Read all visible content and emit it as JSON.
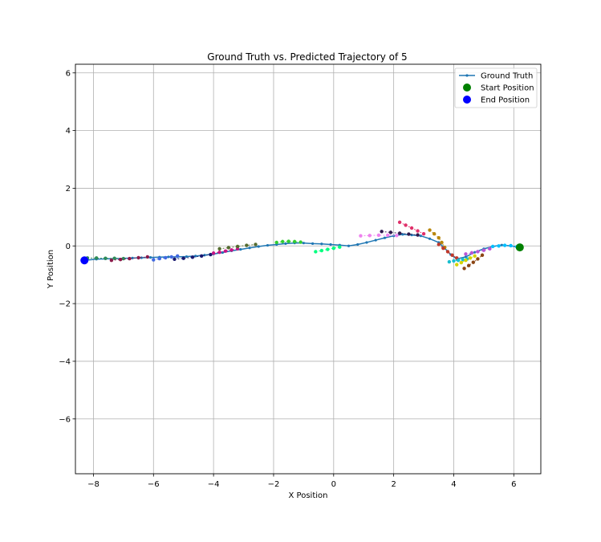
{
  "chart_data": {
    "type": "scatter",
    "title": "Ground Truth vs. Predicted Trajectory of 5",
    "xlabel": "X Position",
    "ylabel": "Y Position",
    "xlim": [
      -8.6,
      6.9
    ],
    "ylim": [
      -7.9,
      6.3
    ],
    "xticks": [
      -8,
      -6,
      -4,
      -2,
      0,
      2,
      4,
      6
    ],
    "yticks": [
      -6,
      -4,
      -2,
      0,
      2,
      4,
      6
    ],
    "xtick_labels": [
      "−8",
      "−6",
      "−4",
      "−2",
      "0",
      "2",
      "4",
      "6"
    ],
    "ytick_labels": [
      "−6",
      "−4",
      "−2",
      "0",
      "2",
      "4",
      "6"
    ],
    "grid": true,
    "legend_position": "top-right",
    "legend": [
      {
        "label": "Ground Truth",
        "kind": "line",
        "color": "#1f77b4"
      },
      {
        "label": "Start Position",
        "kind": "marker",
        "color": "#008000"
      },
      {
        "label": "End Position",
        "kind": "marker",
        "color": "#0000ff"
      }
    ],
    "ground_truth": {
      "name": "Ground Truth",
      "color": "#1f77b4",
      "x": [
        6.2,
        5.9,
        5.6,
        5.3,
        5.0,
        4.7,
        4.4,
        4.1,
        3.9,
        3.7,
        3.5,
        3.2,
        2.9,
        2.6,
        2.3,
        2.0,
        1.7,
        1.4,
        1.1,
        0.8,
        0.5,
        0.2,
        -0.1,
        -0.4,
        -0.7,
        -1.0,
        -1.3,
        -1.6,
        -1.9,
        -2.2,
        -2.5,
        -2.8,
        -3.1,
        -3.4,
        -3.7,
        -4.0,
        -4.3,
        -4.6,
        -4.9,
        -5.2,
        -5.5,
        -5.8,
        -6.1,
        -6.4,
        -6.7,
        -7.0,
        -7.3,
        -7.6,
        -7.9,
        -8.3
      ],
      "y": [
        -0.05,
        0.0,
        0.03,
        -0.02,
        -0.1,
        -0.22,
        -0.38,
        -0.45,
        -0.3,
        -0.08,
        0.12,
        0.25,
        0.35,
        0.38,
        0.4,
        0.35,
        0.28,
        0.2,
        0.12,
        0.05,
        0.0,
        0.03,
        0.05,
        0.07,
        0.08,
        0.1,
        0.1,
        0.08,
        0.05,
        0.02,
        -0.02,
        -0.07,
        -0.12,
        -0.17,
        -0.23,
        -0.28,
        -0.32,
        -0.35,
        -0.37,
        -0.38,
        -0.38,
        -0.39,
        -0.4,
        -0.41,
        -0.42,
        -0.43,
        -0.44,
        -0.45,
        -0.46,
        -0.5
      ]
    },
    "start_position": {
      "x": 6.2,
      "y": -0.05,
      "color": "#008000"
    },
    "end_position": {
      "x": -8.3,
      "y": -0.5,
      "color": "#0000ff"
    },
    "predicted_segments": [
      {
        "color": "#2e8b57",
        "x": [
          -8.2,
          -7.9,
          -7.6,
          -7.3,
          -7.0
        ],
        "y": [
          -0.42,
          -0.42,
          -0.43,
          -0.43,
          -0.44
        ]
      },
      {
        "color": "#8b1a4a",
        "x": [
          -7.4,
          -7.1,
          -6.8,
          -6.5,
          -6.2
        ],
        "y": [
          -0.5,
          -0.47,
          -0.44,
          -0.41,
          -0.38
        ]
      },
      {
        "color": "#4169e1",
        "x": [
          -6.0,
          -5.8,
          -5.6,
          -5.4,
          -5.2
        ],
        "y": [
          -0.48,
          -0.44,
          -0.41,
          -0.38,
          -0.35
        ]
      },
      {
        "color": "#191970",
        "x": [
          -5.3,
          -5.0,
          -4.7,
          -4.4,
          -4.1
        ],
        "y": [
          -0.46,
          -0.43,
          -0.39,
          -0.35,
          -0.3
        ]
      },
      {
        "color": "#c71585",
        "x": [
          -4.0,
          -3.8,
          -3.6,
          -3.4,
          -3.2
        ],
        "y": [
          -0.25,
          -0.22,
          -0.18,
          -0.14,
          -0.1
        ]
      },
      {
        "color": "#556b2f",
        "x": [
          -3.8,
          -3.5,
          -3.2,
          -2.9,
          -2.6
        ],
        "y": [
          -0.1,
          -0.06,
          -0.02,
          0.02,
          0.05
        ]
      },
      {
        "color": "#32cd32",
        "x": [
          -1.9,
          -1.7,
          -1.5,
          -1.3,
          -1.1
        ],
        "y": [
          0.12,
          0.15,
          0.16,
          0.15,
          0.13
        ]
      },
      {
        "color": "#00ff7f",
        "x": [
          -0.6,
          -0.4,
          -0.2,
          0.0,
          0.2
        ],
        "y": [
          -0.2,
          -0.16,
          -0.12,
          -0.08,
          -0.04
        ]
      },
      {
        "color": "#ee82ee",
        "x": [
          0.9,
          1.2,
          1.5,
          1.8,
          2.1
        ],
        "y": [
          0.35,
          0.36,
          0.37,
          0.37,
          0.36
        ]
      },
      {
        "color": "#2f1b4e",
        "x": [
          1.6,
          1.9,
          2.2,
          2.5,
          2.8
        ],
        "y": [
          0.5,
          0.47,
          0.44,
          0.41,
          0.38
        ]
      },
      {
        "color": "#e0306a",
        "x": [
          2.2,
          2.4,
          2.6,
          2.8,
          3.0
        ],
        "y": [
          0.82,
          0.72,
          0.62,
          0.52,
          0.42
        ]
      },
      {
        "color": "#b8860b",
        "x": [
          3.2,
          3.35,
          3.5,
          3.6,
          3.7
        ],
        "y": [
          0.55,
          0.42,
          0.28,
          0.12,
          -0.05
        ]
      },
      {
        "color": "#c0392b",
        "x": [
          3.5,
          3.65,
          3.8,
          3.95,
          4.1
        ],
        "y": [
          0.05,
          -0.08,
          -0.2,
          -0.32,
          -0.42
        ]
      },
      {
        "color": "#17becf",
        "x": [
          3.85,
          4.0,
          4.15,
          4.3,
          4.45
        ],
        "y": [
          -0.55,
          -0.52,
          -0.5,
          -0.47,
          -0.45
        ]
      },
      {
        "color": "#d4d400",
        "x": [
          4.1,
          4.25,
          4.4,
          4.55,
          4.7
        ],
        "y": [
          -0.65,
          -0.58,
          -0.5,
          -0.42,
          -0.35
        ]
      },
      {
        "color": "#8b4513",
        "x": [
          4.35,
          4.5,
          4.65,
          4.8,
          4.95
        ],
        "y": [
          -0.78,
          -0.68,
          -0.57,
          -0.45,
          -0.32
        ]
      },
      {
        "color": "#ba55d3",
        "x": [
          4.4,
          4.6,
          4.8,
          5.0,
          5.2
        ],
        "y": [
          -0.28,
          -0.24,
          -0.2,
          -0.15,
          -0.1
        ]
      },
      {
        "color": "#00bfff",
        "x": [
          5.3,
          5.5,
          5.7,
          5.9,
          6.1
        ],
        "y": [
          -0.02,
          0.0,
          0.02,
          0.01,
          -0.03
        ]
      }
    ]
  }
}
